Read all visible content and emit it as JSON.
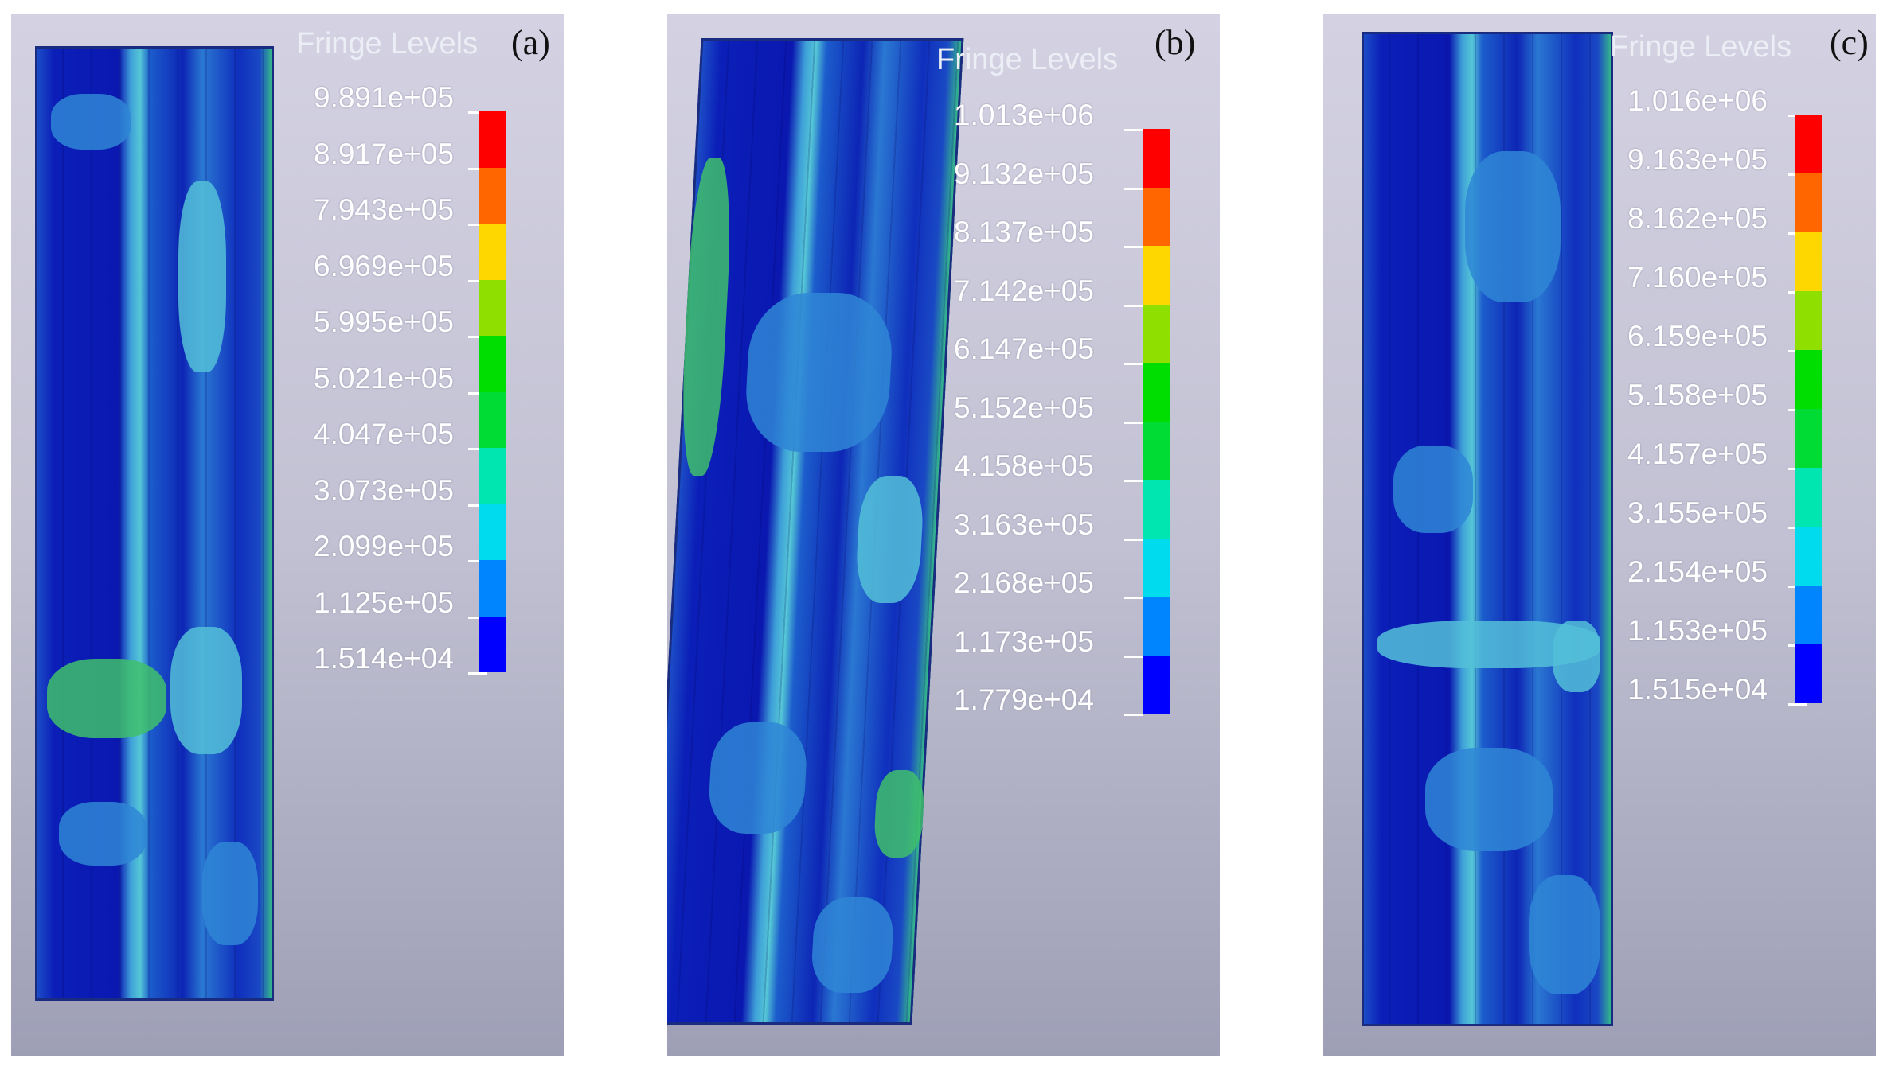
{
  "panels": [
    {
      "label": "(a)",
      "legend_title": "Fringe Levels",
      "levels": [
        "9.891e+05",
        "8.917e+05",
        "7.943e+05",
        "6.969e+05",
        "5.995e+05",
        "5.021e+05",
        "4.047e+05",
        "3.073e+05",
        "2.099e+05",
        "1.125e+05",
        "1.514e+04"
      ]
    },
    {
      "label": "(b)",
      "legend_title": "Fringe Levels",
      "levels": [
        "1.013e+06",
        "9.132e+05",
        "8.137e+05",
        "7.142e+05",
        "6.147e+05",
        "5.152e+05",
        "4.158e+05",
        "3.163e+05",
        "2.168e+05",
        "1.173e+05",
        "1.779e+04"
      ]
    },
    {
      "label": "(c)",
      "legend_title": "Fringe Levels",
      "levels": [
        "1.016e+06",
        "9.163e+05",
        "8.162e+05",
        "7.160e+05",
        "6.159e+05",
        "5.158e+05",
        "4.157e+05",
        "3.155e+05",
        "2.154e+05",
        "1.153e+05",
        "1.515e+04"
      ]
    }
  ],
  "colorbar_colors": [
    "#ff0000",
    "#ff6600",
    "#ffd700",
    "#8fe000",
    "#00dd00",
    "#00dc33",
    "#00e6b0",
    "#00dcee",
    "#0085ff",
    "#0000ff"
  ]
}
